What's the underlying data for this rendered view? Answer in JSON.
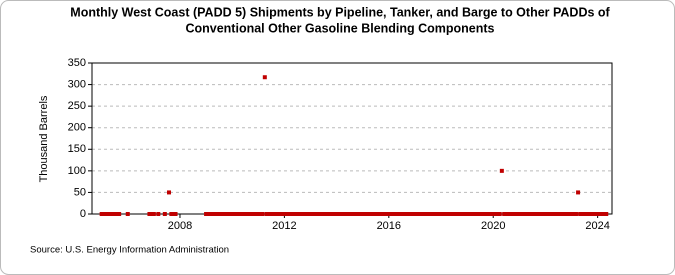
{
  "chart_data": {
    "type": "scatter",
    "title": [
      "Monthly West Coast (PADD 5) Shipments by Pipeline, Tanker, and Barge to Other PADDs of",
      "Conventional Other Gasoline Blending Components"
    ],
    "y_label": "Thousand Barrels",
    "source": "Source: U.S. Energy Information Administration",
    "xlim": [
      2004.63,
      2024.55
    ],
    "xticks": [
      2008,
      2012,
      2016,
      2020,
      2024
    ],
    "ylim": [
      0,
      350
    ],
    "yticks": [
      0,
      50,
      100,
      150,
      200,
      250,
      300,
      350
    ],
    "grid": true,
    "series": [
      {
        "color": "#c00000",
        "x": [
          2005.0,
          2005.08,
          2005.17,
          2005.25,
          2005.33,
          2005.42,
          2005.5,
          2005.58,
          2005.67,
          2006.0,
          2006.83,
          2006.92,
          2007.0,
          2007.17,
          2007.42,
          2007.58,
          2007.67,
          2007.75,
          2007.83,
          2009.0,
          2009.08,
          2009.17,
          2009.25,
          2009.33,
          2009.42,
          2009.5,
          2009.58,
          2009.67,
          2009.75,
          2009.83,
          2009.92,
          2010.0,
          2010.08,
          2010.17,
          2010.25,
          2010.33,
          2010.42,
          2010.5,
          2010.58,
          2010.67,
          2010.75,
          2010.83,
          2010.92,
          2011.0,
          2011.08,
          2011.17,
          2011.25,
          2011.33,
          2011.42,
          2011.5,
          2011.58,
          2011.67,
          2011.75,
          2011.83,
          2011.92,
          2012.0,
          2012.08,
          2012.17,
          2012.25,
          2012.33,
          2012.42,
          2012.5,
          2012.58,
          2012.67,
          2012.75,
          2012.83,
          2012.92,
          2013.0,
          2013.08,
          2013.17,
          2013.25,
          2013.33,
          2013.42,
          2013.5,
          2013.58,
          2013.67,
          2013.75,
          2013.83,
          2013.92,
          2014.0,
          2014.08,
          2014.17,
          2014.25,
          2014.33,
          2014.42,
          2014.5,
          2014.58,
          2014.67,
          2014.75,
          2014.83,
          2014.92,
          2015.0,
          2015.08,
          2015.17,
          2015.25,
          2015.33,
          2015.42,
          2015.5,
          2015.58,
          2015.67,
          2015.75,
          2015.83,
          2015.92,
          2016.0,
          2016.08,
          2016.17,
          2016.25,
          2016.33,
          2016.42,
          2016.5,
          2016.58,
          2016.67,
          2016.75,
          2016.83,
          2016.92,
          2017.0,
          2017.08,
          2017.17,
          2017.25,
          2017.33,
          2017.42,
          2017.5,
          2017.58,
          2017.67,
          2017.75,
          2017.83,
          2017.92,
          2018.0,
          2018.08,
          2018.17,
          2018.25,
          2018.33,
          2018.42,
          2018.5,
          2018.58,
          2018.67,
          2018.75,
          2018.83,
          2018.92,
          2019.0,
          2019.08,
          2019.17,
          2019.25,
          2019.33,
          2019.42,
          2019.5,
          2019.58,
          2019.67,
          2019.75,
          2019.83,
          2019.92,
          2020.0,
          2020.08,
          2020.17,
          2020.25,
          2020.33,
          2020.42,
          2020.5,
          2020.58,
          2020.67,
          2020.75,
          2020.83,
          2020.92,
          2021.0,
          2021.08,
          2021.17,
          2021.25,
          2021.33,
          2021.42,
          2021.5,
          2021.58,
          2021.67,
          2021.75,
          2021.83,
          2021.92,
          2022.0,
          2022.08,
          2022.17,
          2022.25,
          2022.33,
          2022.42,
          2022.5,
          2022.58,
          2022.67,
          2022.75,
          2022.83,
          2022.92,
          2023.0,
          2023.08,
          2023.17,
          2023.25,
          2023.33,
          2023.42,
          2023.5,
          2023.58,
          2023.67,
          2023.75,
          2023.83,
          2023.92,
          2024.0,
          2024.08,
          2024.17,
          2024.25,
          2024.33
        ],
        "values": [
          0,
          0,
          0,
          0,
          0,
          0,
          0,
          0,
          0,
          0,
          0,
          0,
          0,
          0,
          0,
          50,
          0,
          0,
          0,
          0,
          0,
          0,
          0,
          0,
          0,
          0,
          0,
          0,
          0,
          0,
          0,
          0,
          0,
          0,
          0,
          0,
          0,
          0,
          0,
          0,
          0,
          0,
          0,
          0,
          0,
          0,
          317,
          0,
          0,
          0,
          0,
          0,
          0,
          0,
          0,
          0,
          0,
          0,
          0,
          0,
          0,
          0,
          0,
          0,
          0,
          0,
          0,
          0,
          0,
          0,
          0,
          0,
          0,
          0,
          0,
          0,
          0,
          0,
          0,
          0,
          0,
          0,
          0,
          0,
          0,
          0,
          0,
          0,
          0,
          0,
          0,
          0,
          0,
          0,
          0,
          0,
          0,
          0,
          0,
          0,
          0,
          0,
          0,
          0,
          0,
          0,
          0,
          0,
          0,
          0,
          0,
          0,
          0,
          0,
          0,
          0,
          0,
          0,
          0,
          0,
          0,
          0,
          0,
          0,
          0,
          0,
          0,
          0,
          0,
          0,
          0,
          0,
          0,
          0,
          0,
          0,
          0,
          0,
          0,
          0,
          0,
          0,
          0,
          0,
          0,
          0,
          0,
          0,
          0,
          0,
          0,
          0,
          0,
          0,
          0,
          100,
          0,
          0,
          0,
          0,
          0,
          0,
          0,
          0,
          0,
          0,
          0,
          0,
          0,
          0,
          0,
          0,
          0,
          0,
          0,
          0,
          0,
          0,
          0,
          0,
          0,
          0,
          0,
          0,
          0,
          0,
          0,
          0,
          0,
          0,
          50,
          0,
          0,
          0,
          0,
          0,
          0,
          0,
          0,
          0,
          0,
          0,
          0,
          0
        ]
      }
    ]
  }
}
